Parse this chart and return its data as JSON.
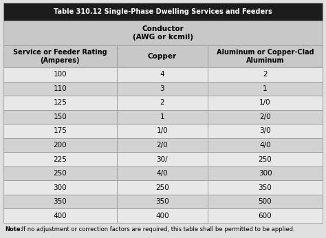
{
  "title": "Table 310.12 Single-Phase Dwelling Services and Feeders",
  "col_header_1": "Conductor\n(AWG or kcmil)",
  "sub_header_col0": "Service or Feeder Rating\n(Amperes)",
  "sub_header_col1": "Copper",
  "sub_header_col2": "Aluminum or Copper-Clad\nAluminum",
  "rows": [
    [
      "100",
      "4",
      "2"
    ],
    [
      "110",
      "3",
      "1"
    ],
    [
      "125",
      "2",
      "1/0"
    ],
    [
      "150",
      "1",
      "2/0"
    ],
    [
      "175",
      "1/0",
      "3/0"
    ],
    [
      "200",
      "2/0",
      "4/0"
    ],
    [
      "225",
      "30/",
      "250"
    ],
    [
      "250",
      "4/0",
      "300"
    ],
    [
      "300",
      "250",
      "350"
    ],
    [
      "350",
      "350",
      "500"
    ],
    [
      "400",
      "400",
      "600"
    ]
  ],
  "note_bold": "Note:",
  "note_rest": " If no adjustment or correction factors are required, this table shall be permitted to be applied.",
  "title_bg": "#1c1c1c",
  "title_fg": "#ffffff",
  "header_bg": "#c8c8c8",
  "header_fg": "#000000",
  "row_even_bg": "#e8e8e8",
  "row_odd_bg": "#d2d2d2",
  "border_color": "#999999",
  "outer_bg": "#e0e0e0"
}
